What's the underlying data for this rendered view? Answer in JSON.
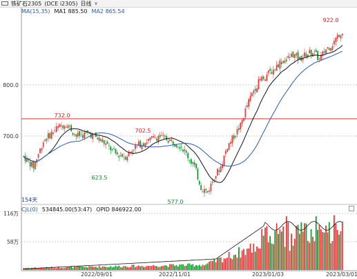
{
  "titlebar": {
    "symbol_label": "铁矿石2305",
    "contract": "(DCE i2305)",
    "period": "日线",
    "caret": "∨"
  },
  "main_legend": {
    "ma_label": "MA(15,35)",
    "ma1_label": "MA1",
    "ma1_value": "885.50",
    "ma2_label": "MA2",
    "ma2_value": "865.54"
  },
  "price_axis": {
    "labels": [
      "800.0",
      "700.0"
    ]
  },
  "annotations": {
    "high_922": "922.0",
    "high_732": "732.0",
    "high_702": "702.5",
    "low_623": "623.5",
    "low_577": "577.0",
    "days": "154天"
  },
  "vol_legend": {
    "indicator": "CJL(0)",
    "vol_value": "534845.00(53:47)",
    "opid": "OPID 846922.00"
  },
  "vol_axis": {
    "labels": [
      "116万",
      "58万"
    ]
  },
  "time_axis": {
    "labels": [
      "2022/09/01",
      "2022/11/01",
      "2023/01/03",
      "2023/03/01"
    ]
  },
  "colors": {
    "up": "#e03a3a",
    "down": "#0f9a2e",
    "ma1": "#111111",
    "ma2": "#2a5aa8",
    "hline": "#e05050"
  },
  "chart_data": {
    "type": "candlestick",
    "price_labels_shown": [
      800,
      700
    ],
    "horizontal_line": 732,
    "marked_values": {
      "high": 922.0,
      "h1": 732.0,
      "h2": 702.5,
      "l1": 623.5,
      "l2": 577.0
    },
    "ma1": 885.5,
    "ma2": 865.54,
    "volume_ticks": [
      "116万",
      "58万"
    ],
    "x_labels": [
      "2022/09/01",
      "2022/11/01",
      "2023/01/03",
      "2023/03/01"
    ]
  }
}
